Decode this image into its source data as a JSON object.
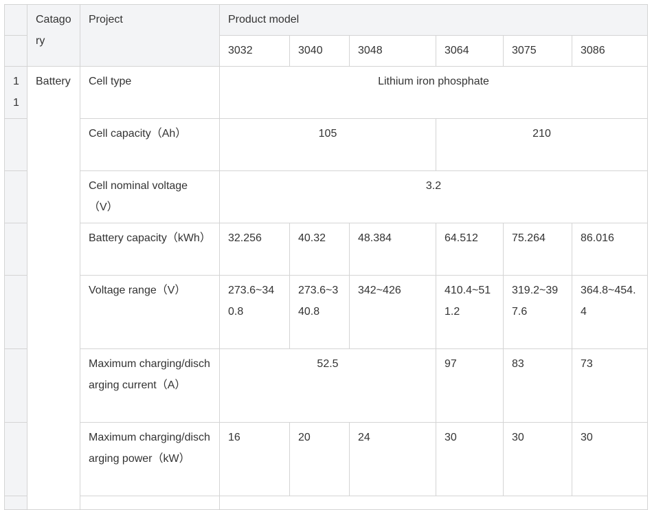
{
  "table": {
    "header": {
      "index_label": "",
      "category_label": "Catagory",
      "project_label": "Project",
      "product_model_label": "Product model",
      "models": [
        "3032",
        "3040",
        "3048",
        "3064",
        "3075",
        "3086"
      ]
    },
    "section": {
      "index": "11",
      "category": "Battery"
    },
    "rows": [
      {
        "project": "Cell type",
        "merged_value": "Lithium iron phosphate"
      },
      {
        "project": "Cell capacity（Ah）",
        "group_a": "105",
        "group_b": "210"
      },
      {
        "project": "Cell nominal voltage（V）",
        "merged_value": "3.2"
      },
      {
        "project": "Battery capacity（kWh）",
        "values": [
          "32.256",
          "40.32",
          "48.384",
          "64.512",
          "75.264",
          "86.016"
        ]
      },
      {
        "project": "Voltage range（V）",
        "values": [
          "273.6~340.8",
          "273.6~340.8",
          "342~426",
          "410.4~511.2",
          "319.2~397.6",
          "364.8~454.4"
        ]
      },
      {
        "project": "Maximum charging/discharging current（A）",
        "group_a": "52.5",
        "values_b": [
          "97",
          "83",
          "73"
        ]
      },
      {
        "project": "Maximum charging/discharging power（kW）",
        "values": [
          "16",
          "20",
          "24",
          "30",
          "30",
          "30"
        ]
      }
    ]
  }
}
